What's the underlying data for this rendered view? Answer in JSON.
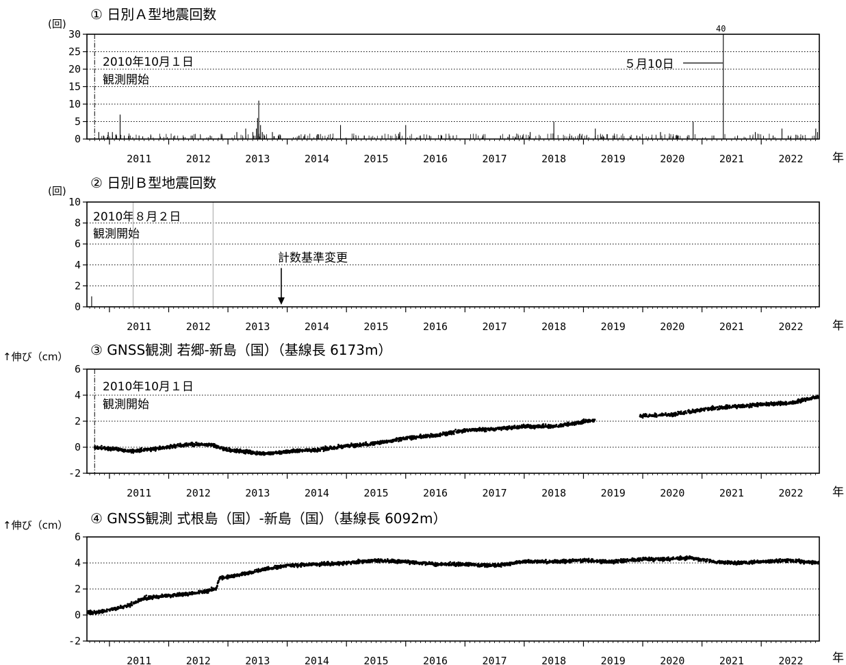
{
  "chart_data": [
    {
      "id": "panel1",
      "type": "bar",
      "title": "① 日別Ａ型地震回数",
      "ylabel": "(回)",
      "xlim": [
        2010.62,
        2022.98
      ],
      "ylim": [
        0,
        30
      ],
      "yticks": [
        0,
        5,
        10,
        15,
        20,
        25,
        30
      ],
      "xtick_years": [
        "2011",
        "2012",
        "2013",
        "2014",
        "2015",
        "2016",
        "2017",
        "2018",
        "2019",
        "2020",
        "2021",
        "2022"
      ],
      "xunit": "年",
      "grid": true,
      "annotations": [
        {
          "text": "2010年10月１日",
          "x": 2010.75
        },
        {
          "text": "観測開始",
          "x": 2010.75
        },
        {
          "text": "５月10日",
          "x": 2021.36
        },
        {
          "text": "40",
          "x": 2021.36
        }
      ],
      "marker_line_x": 2010.75,
      "bars": [
        {
          "x": 2010.82,
          "y": 2
        },
        {
          "x": 2010.9,
          "y": 1
        },
        {
          "x": 2010.98,
          "y": 2
        },
        {
          "x": 2011.05,
          "y": 2
        },
        {
          "x": 2011.12,
          "y": 1
        },
        {
          "x": 2011.18,
          "y": 7
        },
        {
          "x": 2011.25,
          "y": 1
        },
        {
          "x": 2011.35,
          "y": 1
        },
        {
          "x": 2011.5,
          "y": 1
        },
        {
          "x": 2011.7,
          "y": 1
        },
        {
          "x": 2012.1,
          "y": 1
        },
        {
          "x": 2012.4,
          "y": 1
        },
        {
          "x": 2012.7,
          "y": 1
        },
        {
          "x": 2012.9,
          "y": 1
        },
        {
          "x": 2013.15,
          "y": 2
        },
        {
          "x": 2013.3,
          "y": 3
        },
        {
          "x": 2013.42,
          "y": 2
        },
        {
          "x": 2013.48,
          "y": 3
        },
        {
          "x": 2013.5,
          "y": 6
        },
        {
          "x": 2013.52,
          "y": 11
        },
        {
          "x": 2013.55,
          "y": 4
        },
        {
          "x": 2013.58,
          "y": 2
        },
        {
          "x": 2013.62,
          "y": 1
        },
        {
          "x": 2013.75,
          "y": 2
        },
        {
          "x": 2013.85,
          "y": 1
        },
        {
          "x": 2014.2,
          "y": 1
        },
        {
          "x": 2014.5,
          "y": 1
        },
        {
          "x": 2014.9,
          "y": 4
        },
        {
          "x": 2015.3,
          "y": 1
        },
        {
          "x": 2015.6,
          "y": 1
        },
        {
          "x": 2015.9,
          "y": 2
        },
        {
          "x": 2016.0,
          "y": 4
        },
        {
          "x": 2016.4,
          "y": 1
        },
        {
          "x": 2016.8,
          "y": 1
        },
        {
          "x": 2017.3,
          "y": 1
        },
        {
          "x": 2017.6,
          "y": 1
        },
        {
          "x": 2017.9,
          "y": 1
        },
        {
          "x": 2018.1,
          "y": 2
        },
        {
          "x": 2018.5,
          "y": 5
        },
        {
          "x": 2018.8,
          "y": 1
        },
        {
          "x": 2019.2,
          "y": 3
        },
        {
          "x": 2019.5,
          "y": 1
        },
        {
          "x": 2019.9,
          "y": 1
        },
        {
          "x": 2020.3,
          "y": 2
        },
        {
          "x": 2020.6,
          "y": 1
        },
        {
          "x": 2020.85,
          "y": 5
        },
        {
          "x": 2021.2,
          "y": 1
        },
        {
          "x": 2021.36,
          "y": 30
        },
        {
          "x": 2021.6,
          "y": 1
        },
        {
          "x": 2021.9,
          "y": 2
        },
        {
          "x": 2022.2,
          "y": 1
        },
        {
          "x": 2022.35,
          "y": 3
        },
        {
          "x": 2022.7,
          "y": 1
        },
        {
          "x": 2022.92,
          "y": 3
        },
        {
          "x": 2022.95,
          "y": 2
        }
      ]
    },
    {
      "id": "panel2",
      "type": "bar",
      "title": "② 日別Ｂ型地震回数",
      "ylabel": "(回)",
      "xlim": [
        2010.62,
        2022.98
      ],
      "ylim": [
        0,
        10
      ],
      "yticks": [
        0,
        2,
        4,
        6,
        8,
        10
      ],
      "xtick_years": [
        "2011",
        "2012",
        "2013",
        "2014",
        "2015",
        "2016",
        "2017",
        "2018",
        "2019",
        "2020",
        "2021",
        "2022"
      ],
      "xunit": "年",
      "grid": true,
      "annotations": [
        {
          "text": "2010年８月２日",
          "x": 2010.58
        },
        {
          "text": "観測開始",
          "x": 2010.58
        },
        {
          "text": "計数基準変更",
          "x": 2013.9
        }
      ],
      "bars": [
        {
          "x": 2010.7,
          "y": 1
        }
      ],
      "gray_lines": [
        2011.4,
        2012.75
      ],
      "arrow_x": 2013.9
    },
    {
      "id": "panel3",
      "type": "scatter",
      "title": "③ GNSS観測 若郷-新島（国）（基線長 6173m）",
      "ylabel": "↑伸び（cm）",
      "xlim": [
        2010.62,
        2022.98
      ],
      "ylim": [
        -2,
        6
      ],
      "yticks": [
        -2,
        0,
        2,
        4,
        6
      ],
      "xtick_years": [
        "2011",
        "2012",
        "2013",
        "2014",
        "2015",
        "2016",
        "2017",
        "2018",
        "2019",
        "2020",
        "2021",
        "2022"
      ],
      "xunit": "年",
      "grid": true,
      "annotations": [
        {
          "text": "2010年10月１日",
          "x": 2010.75
        },
        {
          "text": "観測開始",
          "x": 2010.75
        }
      ],
      "marker_line_x": 2010.75,
      "trend": [
        {
          "x": 2010.75,
          "y": 0.0
        },
        {
          "x": 2011.0,
          "y": -0.1
        },
        {
          "x": 2011.4,
          "y": -0.3
        },
        {
          "x": 2011.8,
          "y": -0.1
        },
        {
          "x": 2012.3,
          "y": 0.2
        },
        {
          "x": 2012.7,
          "y": 0.2
        },
        {
          "x": 2013.0,
          "y": -0.2
        },
        {
          "x": 2013.6,
          "y": -0.5
        },
        {
          "x": 2014.1,
          "y": -0.3
        },
        {
          "x": 2014.5,
          "y": -0.2
        },
        {
          "x": 2015.0,
          "y": 0.1
        },
        {
          "x": 2015.5,
          "y": 0.3
        },
        {
          "x": 2016.0,
          "y": 0.7
        },
        {
          "x": 2016.5,
          "y": 0.9
        },
        {
          "x": 2017.0,
          "y": 1.3
        },
        {
          "x": 2017.5,
          "y": 1.4
        },
        {
          "x": 2018.0,
          "y": 1.6
        },
        {
          "x": 2018.5,
          "y": 1.6
        },
        {
          "x": 2019.2,
          "y": 2.1
        },
        {
          "x": null,
          "y": null
        },
        {
          "x": 2019.95,
          "y": 2.4
        },
        {
          "x": 2020.5,
          "y": 2.5
        },
        {
          "x": 2021.0,
          "y": 2.9
        },
        {
          "x": 2021.5,
          "y": 3.1
        },
        {
          "x": 2022.0,
          "y": 3.3
        },
        {
          "x": 2022.5,
          "y": 3.4
        },
        {
          "x": 2022.98,
          "y": 3.9
        }
      ]
    },
    {
      "id": "panel4",
      "type": "scatter",
      "title": "④ GNSS観測 式根島（国）-新島（国）（基線長 6092m）",
      "ylabel": "↑伸び（cm）",
      "xlim": [
        2010.62,
        2022.98
      ],
      "ylim": [
        -2,
        6
      ],
      "yticks": [
        -2,
        0,
        2,
        4,
        6
      ],
      "xtick_years": [
        "2011",
        "2012",
        "2013",
        "2014",
        "2015",
        "2016",
        "2017",
        "2018",
        "2019",
        "2020",
        "2021",
        "2022"
      ],
      "xunit": "年",
      "grid": true,
      "trend": [
        {
          "x": 2010.62,
          "y": 0.2
        },
        {
          "x": 2010.8,
          "y": 0.2
        },
        {
          "x": 2011.0,
          "y": 0.4
        },
        {
          "x": 2011.3,
          "y": 0.7
        },
        {
          "x": 2011.6,
          "y": 1.3
        },
        {
          "x": 2012.0,
          "y": 1.5
        },
        {
          "x": 2012.5,
          "y": 1.7
        },
        {
          "x": 2012.8,
          "y": 2.0
        },
        {
          "x": 2012.85,
          "y": 2.8
        },
        {
          "x": 2013.2,
          "y": 3.1
        },
        {
          "x": 2013.6,
          "y": 3.5
        },
        {
          "x": 2014.0,
          "y": 3.8
        },
        {
          "x": 2014.5,
          "y": 3.9
        },
        {
          "x": 2015.0,
          "y": 4.0
        },
        {
          "x": 2015.5,
          "y": 4.2
        },
        {
          "x": 2016.0,
          "y": 4.1
        },
        {
          "x": 2016.5,
          "y": 3.9
        },
        {
          "x": 2017.0,
          "y": 3.9
        },
        {
          "x": 2017.5,
          "y": 3.8
        },
        {
          "x": 2018.0,
          "y": 4.1
        },
        {
          "x": 2018.5,
          "y": 4.1
        },
        {
          "x": 2019.0,
          "y": 4.2
        },
        {
          "x": 2019.5,
          "y": 4.1
        },
        {
          "x": 2020.0,
          "y": 4.3
        },
        {
          "x": 2020.5,
          "y": 4.3
        },
        {
          "x": 2020.8,
          "y": 4.4
        },
        {
          "x": 2021.2,
          "y": 4.1
        },
        {
          "x": 2021.6,
          "y": 4.0
        },
        {
          "x": 2022.0,
          "y": 4.1
        },
        {
          "x": 2022.5,
          "y": 4.2
        },
        {
          "x": 2022.98,
          "y": 4.0
        }
      ]
    }
  ]
}
